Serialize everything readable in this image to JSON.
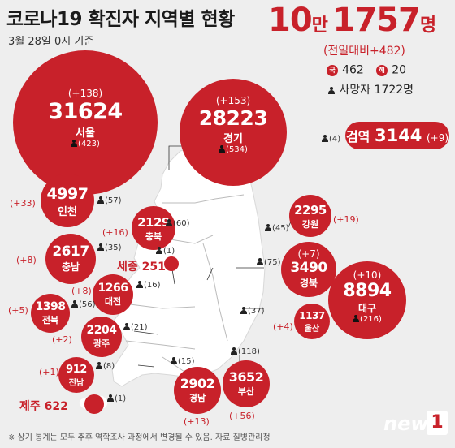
{
  "title": {
    "prefix": "코로나",
    "number": "19",
    "rest": " 확진자 지역별 현황"
  },
  "date": "3월 28일 0시 기준",
  "total": {
    "value1": "10",
    "unit1": "만",
    "value2": "1757",
    "unit2": "명"
  },
  "prev_day": "(전일대비+482)",
  "domestic": {
    "badge": "국",
    "value": "462"
  },
  "overseas": {
    "badge": "해",
    "value": "20"
  },
  "deaths": "사망자 1722명",
  "test": {
    "label": "검역",
    "value": "3144",
    "inc": "(+9)",
    "deaths": "(4)"
  },
  "regions": {
    "seoul": {
      "name": "서울",
      "count": "31624",
      "inc": "(+138)",
      "deaths": "(423)"
    },
    "gyeonggi": {
      "name": "경기",
      "count": "28223",
      "inc": "(+153)",
      "deaths": "(534)"
    },
    "incheon": {
      "name": "인천",
      "count": "4997",
      "inc": "(+33)",
      "deaths": "(57)"
    },
    "chungbuk": {
      "name": "충북",
      "count": "2129",
      "inc": "(+16)",
      "deaths": "(60)"
    },
    "gangwon": {
      "name": "강원",
      "count": "2295",
      "inc": "(+19)",
      "deaths": "(45)"
    },
    "chungnam": {
      "name": "충남",
      "count": "2617",
      "inc": "(+8)",
      "deaths": "(35)"
    },
    "sejong": {
      "label": "세종 251",
      "deaths": "(1)"
    },
    "gyeongbuk": {
      "name": "경북",
      "count": "3490",
      "inc": "(+7)",
      "deaths": "(75)"
    },
    "daejeon": {
      "name": "대전",
      "count": "1266",
      "inc": "(+8)",
      "deaths": "(16)"
    },
    "daegu": {
      "name": "대구",
      "count": "8894",
      "inc": "(+10)",
      "deaths": "(216)"
    },
    "jeonbuk": {
      "name": "전북",
      "count": "1398",
      "inc": "(+5)",
      "deaths": "(56)"
    },
    "ulsan": {
      "name": "울산",
      "count": "1137",
      "inc": "(+4)",
      "deaths": "(37)"
    },
    "gwangju": {
      "name": "광주",
      "count": "2204",
      "inc": "(+2)",
      "deaths": "(21)"
    },
    "jeonnam": {
      "name": "전남",
      "count": "912",
      "inc": "(+1)",
      "deaths": "(8)"
    },
    "gyeongnam": {
      "name": "경남",
      "count": "2902",
      "inc": "(+13)",
      "deaths": "(15)"
    },
    "busan": {
      "name": "부산",
      "count": "3652",
      "inc": "(+56)",
      "deaths": "(118)"
    },
    "jeju": {
      "label": "제주 622",
      "deaths": "(1)"
    }
  },
  "footer": "※ 상기 통계는 모두 추후 역학조사 과정에서 변경될 수 있음.   자료  질병관리청",
  "logo": {
    "text": "news",
    "mark": "1"
  },
  "colors": {
    "accent": "#c8212a",
    "map": "#ffffff",
    "background": "#eeeeee"
  }
}
